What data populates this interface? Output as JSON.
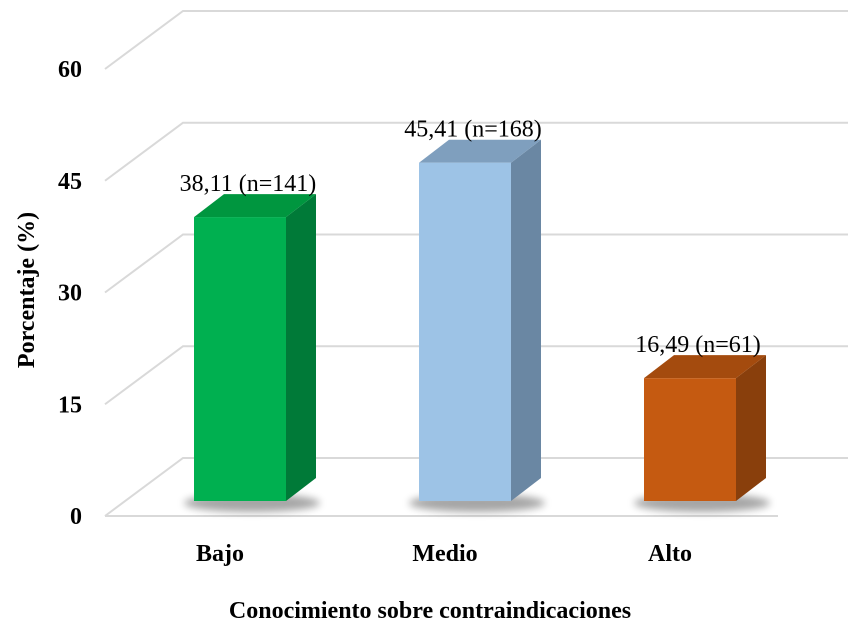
{
  "chart_data": {
    "type": "bar",
    "title": "",
    "xlabel": "Conocimiento sobre contraindicaciones",
    "ylabel": "Porcentaje (%)",
    "ylim": [
      0,
      60
    ],
    "yticks": [
      "0",
      "15",
      "30",
      "45",
      "60"
    ],
    "grid": true,
    "categories": [
      "Bajo",
      "Medio",
      "Alto"
    ],
    "values": [
      38.11,
      45.41,
      16.49
    ],
    "data_labels": [
      "38,11 (n=141)",
      "45,41 (n=168)",
      "16,49 (n=61)"
    ],
    "colors": {
      "front": [
        "#00b050",
        "#9dc3e6",
        "#c55a11"
      ],
      "side": [
        "#007a38",
        "#6a87a3",
        "#893f0c"
      ],
      "top": [
        "#00963f",
        "#7f9fbe",
        "#a44b0e"
      ],
      "grid": "#d9d9d9"
    }
  }
}
